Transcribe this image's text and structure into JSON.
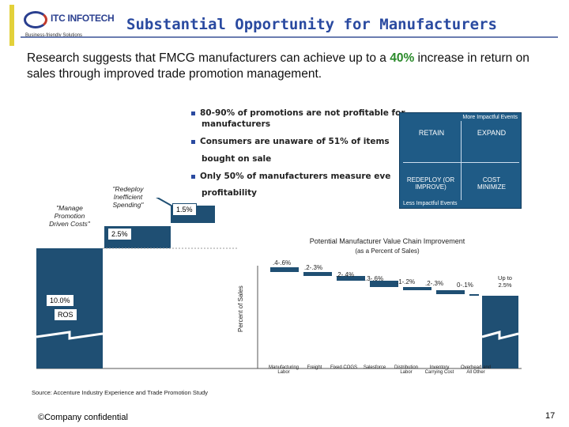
{
  "header": {
    "logo_brand": "ITC INFOTECH",
    "logo_tagline": "Business-friendly Solutions",
    "title": "Substantial Opportunity for Manufacturers"
  },
  "intro": {
    "text_before": "Research suggests that FMCG manufacturers can achieve up to a ",
    "highlight": "40%",
    "text_after": " increase in return on sales through improved trade promotion management."
  },
  "bullets": [
    {
      "line1": "80-90% of promotions are not profitable for",
      "line2": "manufacturers"
    },
    {
      "line1": "Consumers are unaware of 51% of items",
      "line2": "bought on sale"
    },
    {
      "line1": "Only 50% of manufacturers measure eve",
      "line2": "profitability"
    }
  ],
  "matrix": {
    "top_label": "More Impactful Events",
    "bottom_label": "Less Impactful Events",
    "quadrants": [
      "RETAIN",
      "EXPAND",
      "REDEPLOY (OR IMPROVE)",
      "COST MINIMIZE"
    ]
  },
  "left_labels": {
    "manage": "\"Manage Promotion Driven Costs\"",
    "redeploy": "\"Redeploy Inefficient Spending\"",
    "pct_15": "1.5%",
    "pct_25": "2.5%",
    "ros_value": "10.0%",
    "ros_label": "ROS"
  },
  "chart_data": {
    "type": "bar",
    "title": "Potential Manufacturer Value Chain Improvement",
    "subtitle": "(as a Percent of Sales)",
    "ylabel": "Percent of Sales",
    "categories": [
      "Manufacturing Labor",
      "Freight",
      "Fixed COGS",
      "Salesforce",
      "Distribution Labor",
      "Inventory Carrying Cost",
      "Overhead and All Other"
    ],
    "value_labels": [
      ".4-.6%",
      ".2-.3%",
      ".2-.4%",
      ".3-.6%",
      ".1-.2%",
      ".2-.3%",
      "0-.1%"
    ],
    "total_label": "Up to 2.5%"
  },
  "source": "Source: Accenture Industry Experience and Trade Promotion Study",
  "footer": "©Company confidential",
  "page_number": "17"
}
